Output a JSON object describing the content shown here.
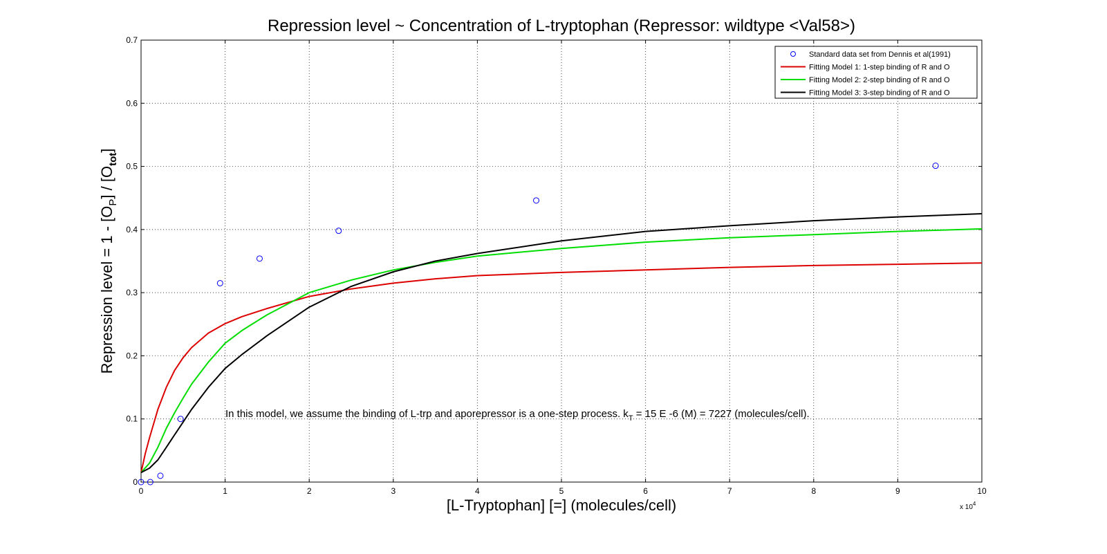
{
  "chart_data": {
    "type": "line",
    "title": "Repression level ~ Concentration of L-tryptophan (Repressor: wildtype <Val58>)",
    "xlabel": "[L-Tryptophan] [=] (molecules/cell)",
    "ylabel": {
      "prefix": "Repression level =  1 - [O",
      "sub1": "P",
      "middle": "] / [O",
      "sub2": "tot",
      "suffix": "]"
    },
    "x_multiplier_label": {
      "base": "x 10",
      "exp": "4"
    },
    "xlim": [
      0,
      100000
    ],
    "ylim": [
      0,
      0.7
    ],
    "xticks": [
      0,
      10000,
      20000,
      30000,
      40000,
      50000,
      60000,
      70000,
      80000,
      90000,
      100000
    ],
    "xtick_labels": [
      "0",
      "1",
      "2",
      "3",
      "4",
      "5",
      "6",
      "7",
      "8",
      "9",
      "10"
    ],
    "yticks": [
      0,
      0.1,
      0.2,
      0.3,
      0.4,
      0.5,
      0.6,
      0.7
    ],
    "ytick_labels": [
      "0",
      "0.1",
      "0.2",
      "0.3",
      "0.4",
      "0.5",
      "0.6",
      "0.7"
    ],
    "grid": true,
    "legend_position": "top-right",
    "scatter": {
      "name": "Standard data set from Dennis et al(1991)",
      "color": "#0000ff",
      "points": [
        [
          0,
          0.0
        ],
        [
          1100,
          0.0
        ],
        [
          2300,
          0.01
        ],
        [
          4700,
          0.1
        ],
        [
          9400,
          0.315
        ],
        [
          14100,
          0.354
        ],
        [
          23500,
          0.398
        ],
        [
          47000,
          0.446
        ],
        [
          94500,
          0.501
        ]
      ]
    },
    "series": [
      {
        "name": "Fitting Model 1: 1-step binding of R and O",
        "color": "#dd0000",
        "x": [
          0,
          500,
          1000,
          2000,
          3000,
          4000,
          5000,
          6000,
          8000,
          10000,
          12000,
          15000,
          20000,
          25000,
          30000,
          35000,
          40000,
          50000,
          60000,
          70000,
          80000,
          90000,
          100000
        ],
        "values": [
          0.015,
          0.045,
          0.07,
          0.115,
          0.15,
          0.177,
          0.197,
          0.213,
          0.236,
          0.251,
          0.262,
          0.275,
          0.294,
          0.306,
          0.315,
          0.322,
          0.327,
          0.332,
          0.336,
          0.34,
          0.343,
          0.345,
          0.347
        ]
      },
      {
        "name": "Fitting Model 2: 2-step binding of R and O",
        "color": "#00dd00",
        "x": [
          0,
          1000,
          2000,
          3000,
          4000,
          5000,
          6000,
          8000,
          10000,
          12000,
          15000,
          20000,
          25000,
          30000,
          35000,
          40000,
          50000,
          60000,
          70000,
          80000,
          90000,
          100000
        ],
        "values": [
          0.015,
          0.03,
          0.055,
          0.085,
          0.11,
          0.133,
          0.155,
          0.19,
          0.22,
          0.24,
          0.265,
          0.3,
          0.32,
          0.336,
          0.348,
          0.358,
          0.37,
          0.38,
          0.387,
          0.392,
          0.397,
          0.401
        ]
      },
      {
        "name": "Fitting Model 3: 3-step binding of R and O",
        "color": "#000000",
        "x": [
          0,
          1000,
          2000,
          3000,
          4000,
          5000,
          6000,
          8000,
          10000,
          12000,
          15000,
          20000,
          25000,
          30000,
          35000,
          40000,
          50000,
          60000,
          70000,
          80000,
          90000,
          100000
        ],
        "values": [
          0.015,
          0.022,
          0.035,
          0.055,
          0.075,
          0.095,
          0.115,
          0.15,
          0.18,
          0.202,
          0.232,
          0.277,
          0.31,
          0.333,
          0.35,
          0.362,
          0.382,
          0.397,
          0.406,
          0.414,
          0.42,
          0.425
        ]
      }
    ],
    "annotation": {
      "text_before": "In this model, we assume the binding of L-trp and aporepressor is a one-step process. k",
      "sub": "T",
      "text_after": " = 15 E -6 (M) = 7227 (molecules/cell).",
      "x": 10000,
      "y": 0.1
    }
  }
}
